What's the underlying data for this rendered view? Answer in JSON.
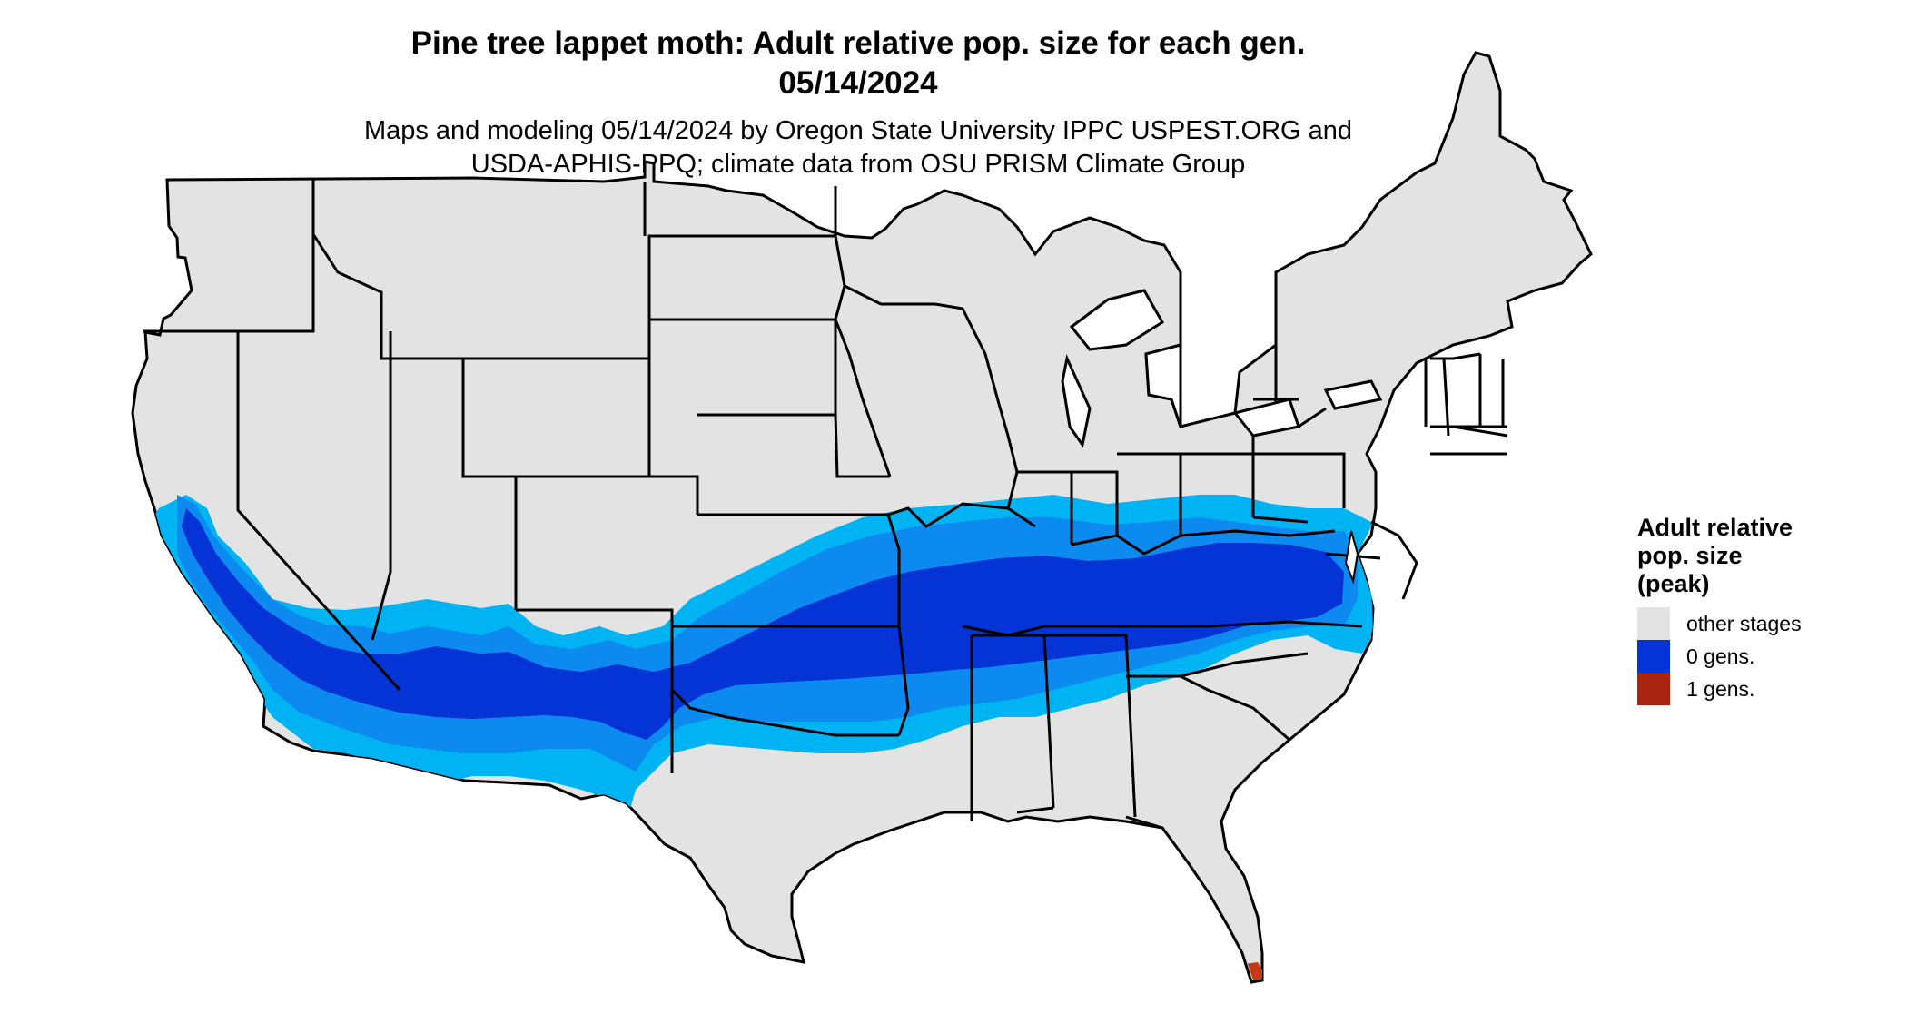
{
  "title": {
    "line1": "Pine tree lappet moth: Adult relative pop. size for each gen.",
    "line2": "05/14/2024"
  },
  "subtitle": {
    "line1": "Maps and modeling 05/14/2024 by Oregon State University IPPC USPEST.ORG and",
    "line2": "USDA-APHIS-PPQ; climate data from OSU PRISM Climate Group"
  },
  "legend": {
    "title_lines": [
      "Adult relative",
      "pop. size",
      "(peak)"
    ],
    "items": [
      {
        "label": "other stages",
        "color": "#e3e3e3"
      },
      {
        "label": "0 gens.",
        "color": "#0434d6"
      },
      {
        "label": "1 gens.",
        "color": "#a82411"
      }
    ]
  },
  "colors": {
    "background_land": "#e3e3e3",
    "pop_low": "#00b4f4",
    "pop_mid": "#0c8af0",
    "pop_high": "#0434d6",
    "gen1": "#c63a12",
    "state_border": "#000000"
  }
}
